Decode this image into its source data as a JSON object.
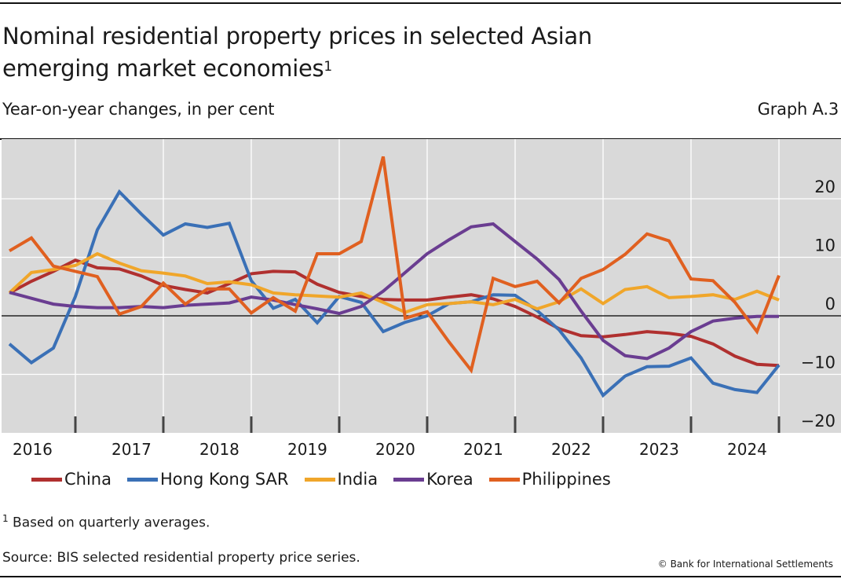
{
  "header": {
    "title_line1": "Nominal residential property prices in selected Asian",
    "title_line2": "emerging market economies",
    "title_footnote_marker": "1",
    "subtitle": "Year-on-year changes, in per cent",
    "graph_id": "Graph A.3"
  },
  "footer": {
    "footnote_marker": "1",
    "footnote_text": "Based on quarterly averages.",
    "source": "Source: BIS selected residential property price series.",
    "copyright": "© Bank for International Settlements"
  },
  "chart_data": {
    "type": "line",
    "title": "Nominal residential property prices in selected Asian emerging market economies",
    "subtitle": "Year-on-year changes, in per cent",
    "xlabel": "",
    "ylabel": "per cent",
    "y_axis_side": "right",
    "ylim": [
      -20,
      30
    ],
    "yticks": [
      20,
      10,
      0,
      -10,
      -20
    ],
    "ytick_labels": [
      "20",
      "10",
      "0",
      "−10",
      "−20"
    ],
    "x_tick_labels": [
      "2016",
      "2017",
      "2018",
      "2019",
      "2020",
      "2021",
      "2022",
      "2023",
      "2024"
    ],
    "frequency": "quarterly",
    "x": [
      "2016Q1",
      "2016Q2",
      "2016Q3",
      "2016Q4",
      "2017Q1",
      "2017Q2",
      "2017Q3",
      "2017Q4",
      "2018Q1",
      "2018Q2",
      "2018Q3",
      "2018Q4",
      "2019Q1",
      "2019Q2",
      "2019Q3",
      "2019Q4",
      "2020Q1",
      "2020Q2",
      "2020Q3",
      "2020Q4",
      "2021Q1",
      "2021Q2",
      "2021Q3",
      "2021Q4",
      "2022Q1",
      "2022Q2",
      "2022Q3",
      "2022Q4",
      "2023Q1",
      "2023Q2",
      "2023Q3",
      "2023Q4",
      "2024Q1",
      "2024Q2",
      "2024Q3",
      "2024Q4"
    ],
    "grid": true,
    "zero_line": true,
    "legend_position": "bottom",
    "series": [
      {
        "name": "China",
        "color": "#b0302f",
        "values": [
          3.9,
          5.9,
          7.6,
          9.5,
          8.2,
          8.0,
          6.8,
          5.2,
          4.5,
          3.9,
          5.5,
          7.2,
          7.6,
          7.5,
          5.4,
          4.0,
          3.3,
          2.8,
          2.7,
          2.7,
          3.2,
          3.6,
          2.9,
          1.6,
          -0.2,
          -2.2,
          -3.4,
          -3.6,
          -3.2,
          -2.7,
          -3.0,
          -3.5,
          -4.8,
          -6.9,
          -8.3,
          -8.5
        ]
      },
      {
        "name": "Hong Kong SAR",
        "color": "#3a70b6",
        "values": [
          -4.8,
          -8.0,
          -5.5,
          3.3,
          14.7,
          21.2,
          17.4,
          13.8,
          15.7,
          15.1,
          15.8,
          6.0,
          1.3,
          2.8,
          -1.2,
          3.3,
          2.3,
          -2.7,
          -1.1,
          0.0,
          2.1,
          2.4,
          3.6,
          3.5,
          0.9,
          -2.4,
          -7.2,
          -13.6,
          -10.3,
          -8.7,
          -8.6,
          -7.2,
          -11.5,
          -12.6,
          -13.1,
          -8.4
        ]
      },
      {
        "name": "India",
        "color": "#f0a62a",
        "values": [
          3.9,
          7.4,
          7.9,
          8.6,
          10.6,
          9.0,
          7.7,
          7.3,
          6.8,
          5.5,
          5.8,
          5.3,
          3.9,
          3.6,
          3.4,
          3.2,
          3.9,
          2.3,
          0.6,
          1.9,
          2.1,
          2.4,
          1.9,
          2.8,
          1.2,
          2.4,
          4.6,
          2.1,
          4.5,
          5.0,
          3.1,
          3.3,
          3.6,
          2.8,
          4.2,
          2.7
        ]
      },
      {
        "name": "Korea",
        "color": "#6a3d91",
        "values": [
          4.0,
          3.0,
          2.0,
          1.6,
          1.4,
          1.4,
          1.6,
          1.4,
          1.8,
          2.0,
          2.2,
          3.2,
          2.7,
          1.9,
          1.2,
          0.4,
          1.6,
          4.2,
          7.4,
          10.6,
          13.0,
          15.2,
          15.7,
          12.7,
          9.7,
          6.2,
          0.8,
          -4.2,
          -6.8,
          -7.3,
          -5.5,
          -2.7,
          -0.9,
          -0.4,
          -0.1,
          -0.1
        ]
      },
      {
        "name": "Philippines",
        "color": "#e06020",
        "values": [
          11.1,
          13.3,
          8.5,
          7.6,
          6.7,
          0.3,
          1.6,
          5.6,
          2.0,
          4.6,
          4.6,
          0.5,
          3.1,
          0.8,
          10.6,
          10.6,
          12.7,
          27.2,
          -0.4,
          0.7,
          -4.5,
          -9.3,
          6.4,
          5.0,
          5.9,
          2.2,
          6.4,
          7.9,
          10.5,
          14.0,
          12.8,
          6.3,
          6.0,
          2.3,
          -2.7,
          6.9
        ]
      }
    ]
  }
}
